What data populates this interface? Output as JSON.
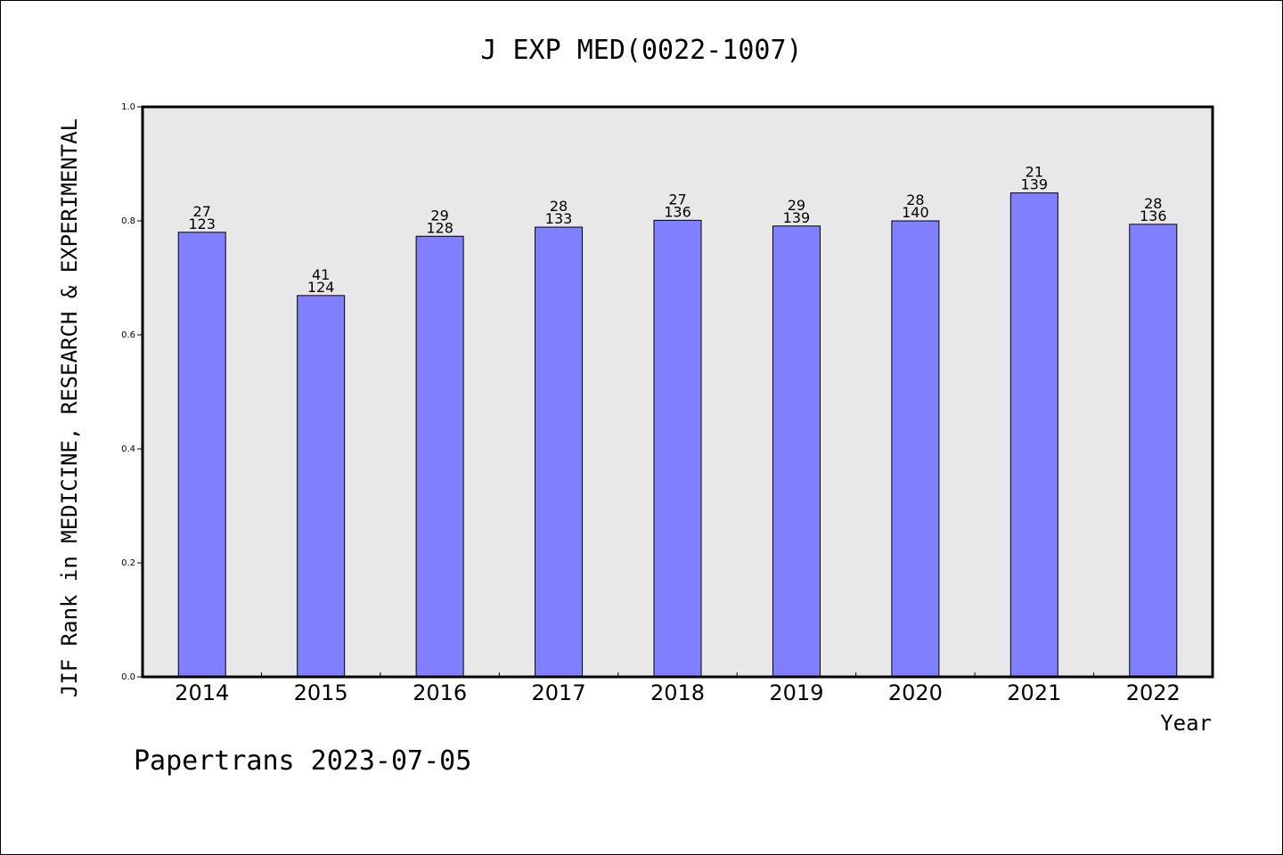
{
  "chart_data": {
    "type": "bar",
    "title": "J EXP MED(0022-1007)",
    "xlabel": "Year",
    "ylabel": "JIF Rank in MEDICINE, RESEARCH & EXPERIMENTAL",
    "ylim": [
      0,
      1.0
    ],
    "yticks": [
      "0.0",
      "0.2",
      "0.4",
      "0.6",
      "0.8",
      "1.0"
    ],
    "categories": [
      "2014",
      "2015",
      "2016",
      "2017",
      "2018",
      "2019",
      "2020",
      "2021",
      "2022"
    ],
    "values": [
      0.78,
      0.669,
      0.773,
      0.789,
      0.801,
      0.791,
      0.8,
      0.849,
      0.794
    ],
    "rank_labels": [
      "27",
      "41",
      "29",
      "28",
      "27",
      "29",
      "28",
      "21",
      "28"
    ],
    "total_labels": [
      "123",
      "124",
      "128",
      "133",
      "136",
      "139",
      "140",
      "139",
      "136"
    ],
    "bar_color": "#8080ff",
    "plot_background": "#e8e8e8",
    "grid": false,
    "legend": "none"
  },
  "footer": {
    "watermark": "Papertrans 2023-07-05"
  }
}
